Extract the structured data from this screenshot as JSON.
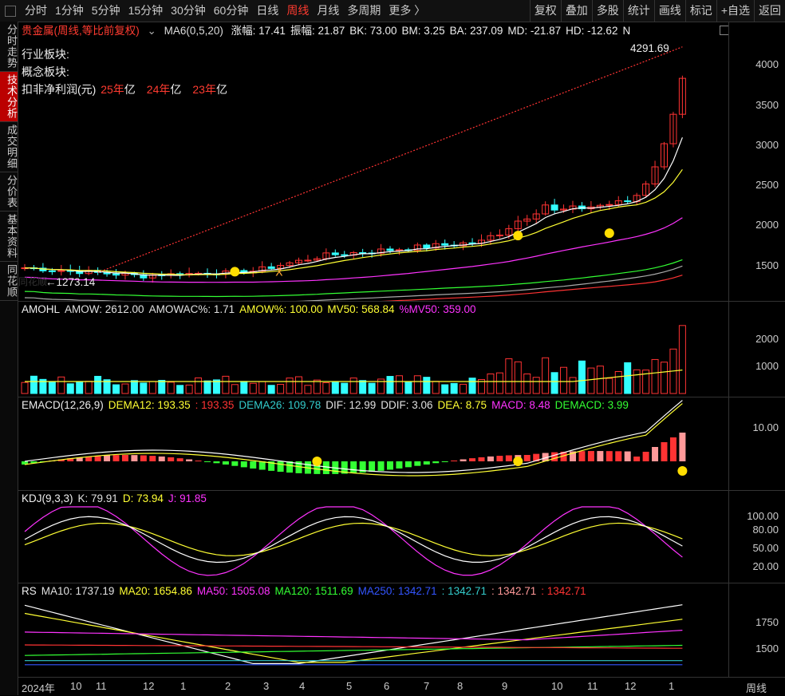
{
  "toolbar": {
    "periods": [
      "分时",
      "1分钟",
      "5分钟",
      "15分钟",
      "30分钟",
      "60分钟",
      "日线",
      "周线",
      "月线",
      "多周期",
      "更多 〉"
    ],
    "active_period": "周线",
    "tools": [
      "复权",
      "叠加",
      "多股",
      "统计",
      "画线",
      "标记",
      "+自选",
      "返回"
    ]
  },
  "sidebar": [
    "分时走势",
    "技术分析",
    "成交明细",
    "分价表",
    "基本资料",
    "同花顺"
  ],
  "main": {
    "stock_name": "贵金属",
    "mode": "(周线,等比前复权)",
    "indicator": "MA6(0,5,20)",
    "stats": [
      "涨幅: 17.41",
      "振幅: 21.87",
      "BK: 73.00",
      "BM: 3.25",
      "BA: 237.09",
      "MD: -21.87",
      "HD: -12.62",
      "N"
    ],
    "info_lines": [
      "行业板块:",
      "概念板块:"
    ],
    "profit_label": "扣非净利润(元)",
    "profit_items": [
      {
        "year": "25年",
        "unit": "亿"
      },
      {
        "year": "24年",
        "unit": "亿"
      },
      {
        "year": "23年",
        "unit": "亿"
      }
    ],
    "high_label": "4291.69",
    "low_label": "←1273.14",
    "watermark": "同花顺",
    "yaxis": [
      "4000",
      "3500",
      "3000",
      "2500",
      "2000",
      "1500"
    ]
  },
  "vol": {
    "title": "AMOHL",
    "items": [
      {
        "label": "AMOW: 2612.00",
        "color": "#e0e0e0"
      },
      {
        "label": "AMOWAC%: 1.71",
        "color": "#e0e0e0"
      },
      {
        "label": "AMOW%: 100.00",
        "color": "#ffff33"
      },
      {
        "label": "MV50: 568.84",
        "color": "#ffff33"
      },
      {
        "label": "%MV50: 359.00",
        "color": "#ff33ff"
      }
    ],
    "yaxis": [
      "2000",
      "1000"
    ]
  },
  "macd": {
    "title": "EMACD(12,26,9)",
    "items": [
      {
        "label": "DEMA12: 193.35",
        "color": "#ffff33"
      },
      {
        "label": ": 193.35",
        "color": "#ff3333"
      },
      {
        "label": "DEMA26: 109.78",
        "color": "#33cccc"
      },
      {
        "label": "DIF: 12.99",
        "color": "#e0e0e0"
      },
      {
        "label": "DDIF: 3.06",
        "color": "#e0e0e0"
      },
      {
        "label": "DEA: 8.75",
        "color": "#ffff33"
      },
      {
        "label": "MACD: 8.48",
        "color": "#ff33ff"
      },
      {
        "label": "DEMACD: 3.99",
        "color": "#33ff33"
      }
    ],
    "yaxis": [
      "10.00"
    ]
  },
  "kdj": {
    "title": "KDJ(9,3,3)",
    "items": [
      {
        "label": "K: 79.91",
        "color": "#e0e0e0"
      },
      {
        "label": "D: 73.94",
        "color": "#ffff33"
      },
      {
        "label": "J: 91.85",
        "color": "#ff33ff"
      }
    ],
    "yaxis": [
      "100.00",
      "80.00",
      "50.00",
      "20.00"
    ]
  },
  "rs": {
    "title": "RS",
    "items": [
      {
        "label": "MA10: 1737.19",
        "color": "#e0e0e0"
      },
      {
        "label": "MA20: 1654.86",
        "color": "#ffff33"
      },
      {
        "label": "MA50: 1505.08",
        "color": "#ff33ff"
      },
      {
        "label": "MA120: 1511.69",
        "color": "#33ff33"
      },
      {
        "label": "MA250: 1342.71",
        "color": "#3355ff"
      },
      {
        "label": ": 1342.71",
        "color": "#33cccc"
      },
      {
        "label": ": 1342.71",
        "color": "#ff9999"
      },
      {
        "label": ": 1342.71",
        "color": "#ff3333"
      }
    ],
    "yaxis": [
      "1750",
      "1500"
    ]
  },
  "dateaxis": {
    "labels": [
      "2024年",
      "10",
      "11",
      "12",
      "1",
      "2",
      "3",
      "4",
      "5",
      "6",
      "7",
      "8",
      "9",
      "10",
      "11",
      "12",
      "1"
    ],
    "period": "周线"
  }
}
